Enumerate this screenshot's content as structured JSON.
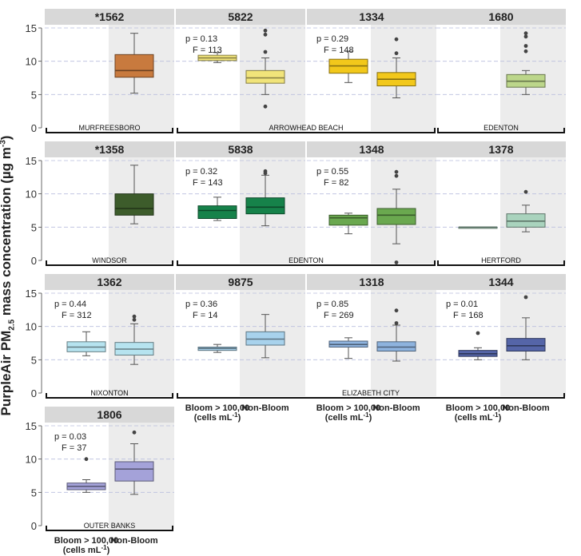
{
  "chart_data": {
    "type": "boxplot",
    "ylabel_main": "PurpleAir PM",
    "ylabel_sub": "2.5",
    "ylabel_mid": " mass concentration (µg m",
    "ylabel_sup": "-3",
    "ylabel_end": ")",
    "ylim": [
      0,
      15
    ],
    "yticks": [
      "0",
      "5",
      "10",
      "15"
    ],
    "xtick_labels": [
      {
        "line1": "Bloom > 100,00",
        "line2": "(cells mL",
        "sup": "-1",
        "end": ")"
      },
      {
        "line1": "Non-Bloom",
        "line2": "",
        "sup": "",
        "end": ""
      }
    ],
    "panels": [
      {
        "id": "*1562",
        "row": 0,
        "col": 0,
        "color": "#c87a3e",
        "bloom": null,
        "nonbloom": {
          "min": 5.2,
          "q1": 7.6,
          "median": 8.6,
          "q3": 11.0,
          "max": 14.2,
          "outliers": []
        }
      },
      {
        "id": "5822",
        "row": 0,
        "col": 1,
        "color": "#f1e47a",
        "p": "p = 0.13",
        "F": "F = 113",
        "bloom": {
          "min": 9.8,
          "q1": 10.1,
          "median": 10.5,
          "q3": 10.9,
          "max": 11.3,
          "outliers": []
        },
        "nonbloom": {
          "min": 5.0,
          "q1": 6.7,
          "median": 7.5,
          "q3": 8.6,
          "max": 10.5,
          "outliers": [
            3.2,
            11.4,
            14.0,
            14.6
          ]
        }
      },
      {
        "id": "1334",
        "row": 0,
        "col": 2,
        "color": "#f2c81b",
        "p": "p = 0.29",
        "F": "F = 148",
        "bloom": {
          "min": 6.8,
          "q1": 8.2,
          "median": 9.3,
          "q3": 10.3,
          "max": 11.5,
          "outliers": []
        },
        "nonbloom": {
          "min": 4.5,
          "q1": 6.3,
          "median": 7.3,
          "q3": 8.3,
          "max": 10.5,
          "outliers": [
            11.2,
            13.3
          ]
        }
      },
      {
        "id": "1680",
        "row": 0,
        "col": 3,
        "color": "#bcd68a",
        "bloom": null,
        "nonbloom": {
          "min": 5.0,
          "q1": 6.1,
          "median": 7.0,
          "q3": 8.0,
          "max": 8.6,
          "outliers": [
            11.5,
            12.3,
            13.7,
            14.2
          ]
        }
      },
      {
        "id": "*1358",
        "row": 1,
        "col": 0,
        "color": "#3d5c2b",
        "bloom": null,
        "nonbloom": {
          "min": 5.5,
          "q1": 6.8,
          "median": 7.8,
          "q3": 10.0,
          "max": 14.3,
          "outliers": []
        }
      },
      {
        "id": "5838",
        "row": 1,
        "col": 1,
        "color": "#16824a",
        "p": "p = 0.32",
        "F": "F = 143",
        "bloom": {
          "min": 6.0,
          "q1": 6.3,
          "median": 7.5,
          "q3": 8.2,
          "max": 9.5,
          "outliers": []
        },
        "nonbloom": {
          "min": 5.2,
          "q1": 7.0,
          "median": 8.0,
          "q3": 9.4,
          "max": 12.8,
          "outliers": [
            13.1,
            13.4
          ]
        }
      },
      {
        "id": "1348",
        "row": 1,
        "col": 2,
        "color": "#6aa84f",
        "p": "p = 0.55",
        "F": "F = 82",
        "bloom": {
          "min": 4.0,
          "q1": 5.3,
          "median": 6.4,
          "q3": 6.8,
          "max": 7.1,
          "outliers": []
        },
        "nonbloom": {
          "min": 2.5,
          "q1": 5.4,
          "median": 6.8,
          "q3": 7.8,
          "max": 10.7,
          "outliers": [
            -0.3,
            12.7,
            13.3
          ]
        }
      },
      {
        "id": "1378",
        "row": 1,
        "col": 3,
        "color": "#a9d3bd",
        "bloom": {
          "min": 5.0,
          "q1": 5.0,
          "median": 5.0,
          "q3": 5.0,
          "max": 5.0,
          "outliers": []
        },
        "nonbloom": {
          "min": 4.3,
          "q1": 5.0,
          "median": 5.9,
          "q3": 7.0,
          "max": 8.3,
          "outliers": [
            10.3
          ]
        }
      },
      {
        "id": "1362",
        "row": 2,
        "col": 0,
        "color": "#b6e3ef",
        "p": "p = 0.44",
        "F": "F = 312",
        "bloom": {
          "min": 5.6,
          "q1": 6.2,
          "median": 6.9,
          "q3": 7.7,
          "max": 9.2,
          "outliers": []
        },
        "nonbloom": {
          "min": 4.3,
          "q1": 5.7,
          "median": 6.6,
          "q3": 7.6,
          "max": 10.4,
          "outliers": [
            11.0,
            11.5
          ]
        }
      },
      {
        "id": "9875",
        "row": 2,
        "col": 1,
        "color": "#a8d2ec",
        "p": "p = 0.36",
        "F": "F = 14",
        "bloom": {
          "min": 6.1,
          "q1": 6.4,
          "median": 6.7,
          "q3": 6.9,
          "max": 7.3,
          "outliers": []
        },
        "nonbloom": {
          "min": 5.3,
          "q1": 7.2,
          "median": 8.1,
          "q3": 9.2,
          "max": 11.8,
          "outliers": []
        }
      },
      {
        "id": "1318",
        "row": 2,
        "col": 2,
        "color": "#8eb3de",
        "p": "p = 0.85",
        "F": "F = 269",
        "bloom": {
          "min": 5.2,
          "q1": 6.9,
          "median": 7.3,
          "q3": 7.8,
          "max": 8.3,
          "outliers": []
        },
        "nonbloom": {
          "min": 4.8,
          "q1": 6.3,
          "median": 6.9,
          "q3": 7.7,
          "max": 10.2,
          "outliers": [
            10.5,
            12.4
          ]
        }
      },
      {
        "id": "1344",
        "row": 2,
        "col": 3,
        "color": "#5565a8",
        "p": "p = 0.01",
        "F": "F = 168",
        "bloom": {
          "min": 5.0,
          "q1": 5.5,
          "median": 5.9,
          "q3": 6.4,
          "max": 6.8,
          "outliers": [
            9.0
          ]
        },
        "nonbloom": {
          "min": 5.0,
          "q1": 6.3,
          "median": 7.1,
          "q3": 8.2,
          "max": 11.3,
          "outliers": [
            14.4
          ]
        }
      },
      {
        "id": "1806",
        "row": 3,
        "col": 0,
        "color": "#a4a2d9",
        "p": "p = 0.03",
        "F": "F = 37",
        "bloom": {
          "min": 5.0,
          "q1": 5.4,
          "median": 5.9,
          "q3": 6.4,
          "max": 6.9,
          "outliers": [
            10.0
          ]
        },
        "nonbloom": {
          "min": 4.7,
          "q1": 6.7,
          "median": 8.5,
          "q3": 9.6,
          "max": 12.3,
          "outliers": [
            14.0
          ]
        }
      }
    ],
    "locations": [
      {
        "name": "MURFREESBORO",
        "row": 0,
        "start": 0,
        "end": 0
      },
      {
        "name": "ARROWHEAD BEACH",
        "row": 0,
        "start": 1,
        "end": 2
      },
      {
        "name": "EDENTON",
        "row": 0,
        "start": 3,
        "end": 3
      },
      {
        "name": "WINDSOR",
        "row": 1,
        "start": 0,
        "end": 0
      },
      {
        "name": "EDENTON",
        "row": 1,
        "start": 1,
        "end": 2
      },
      {
        "name": "HERTFORD",
        "row": 1,
        "start": 3,
        "end": 3
      },
      {
        "name": "NIXONTON",
        "row": 2,
        "start": 0,
        "end": 0
      },
      {
        "name": "ELIZABETH CITY",
        "row": 2,
        "start": 1,
        "end": 3
      },
      {
        "name": "OUTER BANKS",
        "row": 3,
        "start": 0,
        "end": 0
      }
    ]
  }
}
